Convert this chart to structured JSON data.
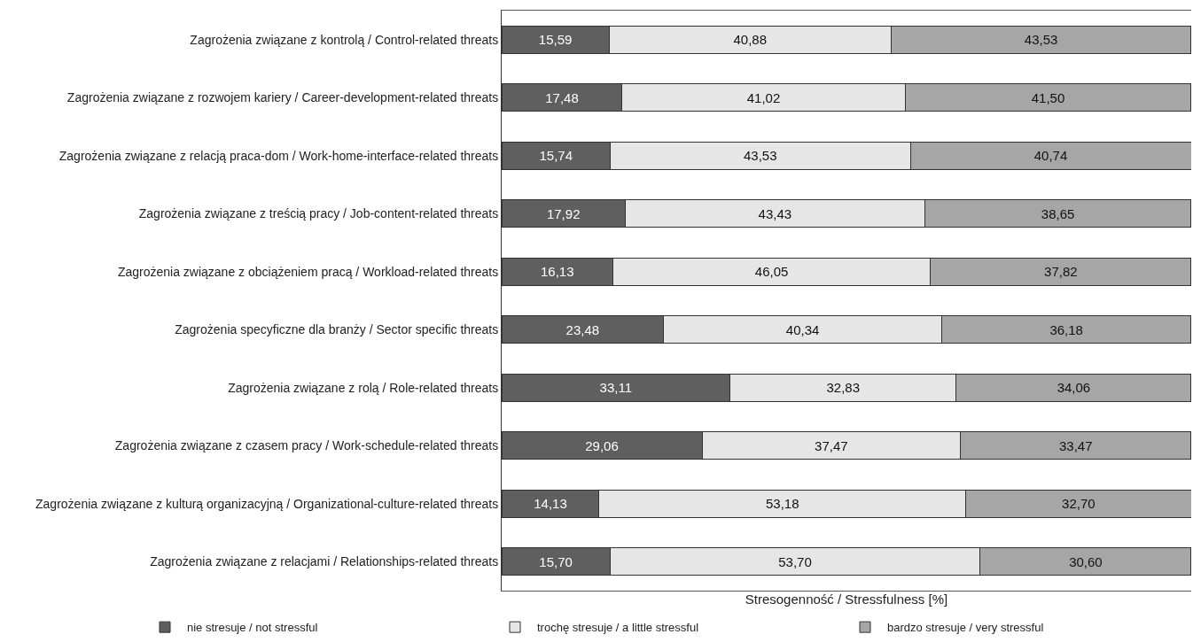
{
  "chart_data": {
    "type": "bar",
    "orientation": "horizontal",
    "stacked": true,
    "data_labels": true,
    "grid": false,
    "legend": "bottom left",
    "xlabel": "Stresogenność / Stressfulness [%]",
    "tick_labels": "y",
    "categories": [
      "Zagrożenia związane z kontrolą / Control-related threats",
      "Zagrożenia związane z rozwojem kariery / Career-development-related threats",
      "Zagrożenia związane z relacją praca-dom / Work-home-interface-related threats",
      "Zagrożenia związane z treścią pracy / Job-content-related threats",
      "Zagrożenia związane z obciążeniem pracą / Workload-related threats",
      "Zagrożenia specyficzne dla branży / Sector specific threats",
      "Zagrożenia związane z rolą / Role-related threats",
      "Zagrożenia związane z czasem pracy / Work-schedule-related threats",
      "Zagrożenia związane z kulturą organizacyjną / Organizational-culture-related threats",
      "Zagrożenia związane z relacjami / Relationships-related threats"
    ],
    "series": [
      {
        "name": "nie stresuje / not stressful",
        "color": "#5f5f5f",
        "values": [
          15.59,
          17.48,
          15.74,
          17.92,
          16.13,
          23.48,
          33.11,
          29.06,
          14.13,
          15.7
        ],
        "value_labels": [
          "15,59",
          "17,48",
          "15,74",
          "17,92",
          "16,13",
          "23,48",
          "33,11",
          "29,06",
          "14,13",
          "15,70"
        ]
      },
      {
        "name": "trochę stresuje / a little stressful",
        "color": "#e6e6e6",
        "values": [
          40.88,
          41.02,
          43.53,
          43.43,
          46.05,
          40.34,
          32.83,
          37.47,
          53.18,
          53.7
        ],
        "value_labels": [
          "40,88",
          "41,02",
          "43,53",
          "43,43",
          "46,05",
          "40,34",
          "32,83",
          "37,47",
          "53,18",
          "53,70"
        ]
      },
      {
        "name": "bardzo stresuje / very stressful",
        "color": "#a6a6a6",
        "values": [
          43.53,
          41.5,
          40.74,
          38.65,
          37.82,
          36.18,
          34.06,
          33.47,
          32.7,
          30.6
        ],
        "value_labels": [
          "43,53",
          "41,50",
          "40,74",
          "38,65",
          "37,82",
          "36,18",
          "34,06",
          "33,47",
          "32,70",
          "30,60"
        ]
      }
    ]
  }
}
